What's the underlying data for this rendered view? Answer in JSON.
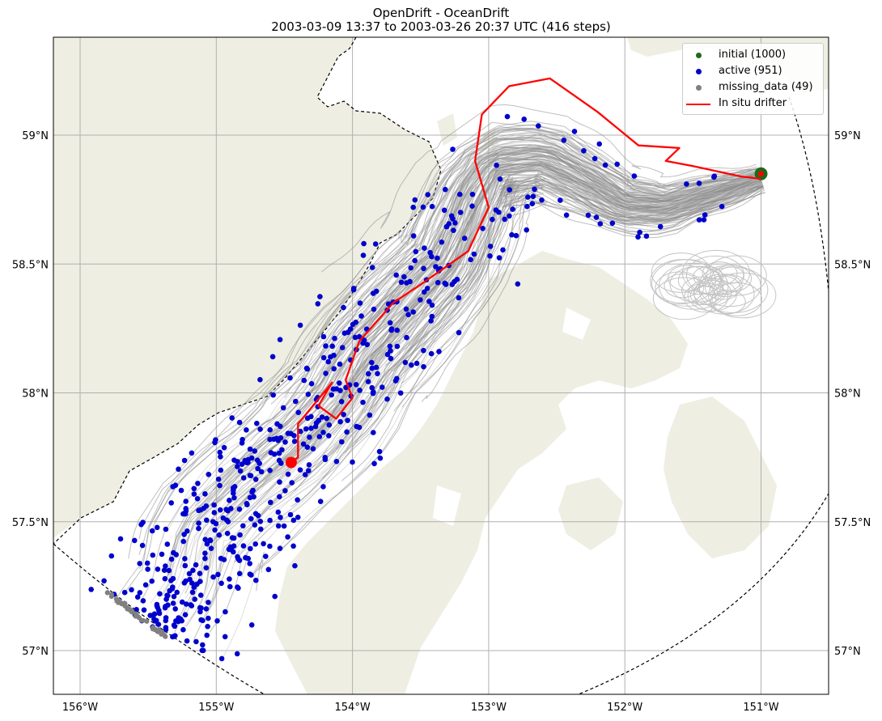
{
  "title": "OpenDrift - OceanDrift",
  "subtitle": "2003-03-09 13:37 to 2003-03-26 20:37 UTC (416 steps)",
  "map": {
    "lon_range": [
      -156.2,
      -150.45
    ],
    "lat_range": [
      56.85,
      59.38
    ],
    "gridlines": true,
    "land_color": "#eeeee3",
    "ocean_color": "#ffffff",
    "lon_ticks": [
      {
        "value": -156,
        "label": "156°W"
      },
      {
        "value": -155,
        "label": "155°W"
      },
      {
        "value": -154,
        "label": "154°W"
      },
      {
        "value": -153,
        "label": "153°W"
      },
      {
        "value": -152,
        "label": "152°W"
      },
      {
        "value": -151,
        "label": "151°W"
      }
    ],
    "lat_ticks": [
      {
        "value": 59.0,
        "label": "59°N"
      },
      {
        "value": 58.5,
        "label": "58.5°N"
      },
      {
        "value": 58.0,
        "label": "58°N"
      },
      {
        "value": 57.5,
        "label": "57.5°N"
      },
      {
        "value": 57.0,
        "label": "57°N"
      }
    ]
  },
  "legend": {
    "placement": "top-right",
    "items": [
      {
        "label": "initial (1000)",
        "color": "#1a6b1a",
        "kind": "dot"
      },
      {
        "label": "active (951)",
        "color": "#0000cc",
        "kind": "dot"
      },
      {
        "label": "missing_data (49)",
        "color": "#808080",
        "kind": "dot"
      },
      {
        "label": "In situ drifter",
        "color": "#ff0000",
        "kind": "line"
      }
    ]
  },
  "chart_data": {
    "type": "scatter",
    "initial_position": {
      "lon": -151.0,
      "lat": 58.85,
      "count": 1000
    },
    "active_count": 951,
    "missing_data_count": 49,
    "particle_cloud_centerline": [
      [
        -151.0,
        58.83
      ],
      [
        -151.3,
        58.78
      ],
      [
        -151.7,
        58.72
      ],
      [
        -152.0,
        58.73
      ],
      [
        -152.3,
        58.82
      ],
      [
        -152.6,
        58.9
      ],
      [
        -152.95,
        58.88
      ],
      [
        -153.1,
        58.75
      ],
      [
        -153.3,
        58.5
      ],
      [
        -153.6,
        58.33
      ],
      [
        -153.9,
        58.15
      ],
      [
        -154.1,
        57.98
      ],
      [
        -154.4,
        57.8
      ],
      [
        -154.8,
        57.62
      ],
      [
        -155.1,
        57.45
      ],
      [
        -155.2,
        57.25
      ],
      [
        -155.4,
        57.07
      ]
    ],
    "in_situ_drifter_track": [
      [
        -151.0,
        58.83
      ],
      [
        -151.15,
        58.84
      ],
      [
        -151.5,
        58.88
      ],
      [
        -151.7,
        58.9
      ],
      [
        -151.6,
        58.95
      ],
      [
        -151.9,
        58.96
      ],
      [
        -152.2,
        59.09
      ],
      [
        -152.55,
        59.22
      ],
      [
        -152.85,
        59.19
      ],
      [
        -153.05,
        59.08
      ],
      [
        -153.1,
        58.9
      ],
      [
        -153.0,
        58.72
      ],
      [
        -153.15,
        58.55
      ],
      [
        -153.5,
        58.42
      ],
      [
        -153.7,
        58.35
      ],
      [
        -153.95,
        58.2
      ],
      [
        -154.05,
        58.05
      ],
      [
        -154.0,
        57.98
      ],
      [
        -154.12,
        57.9
      ],
      [
        -154.25,
        57.95
      ],
      [
        -154.15,
        58.04
      ],
      [
        -154.4,
        57.88
      ],
      [
        -154.4,
        57.75
      ],
      [
        -154.45,
        57.73
      ]
    ],
    "drifter_end": {
      "lon": -154.45,
      "lat": 57.73
    }
  }
}
